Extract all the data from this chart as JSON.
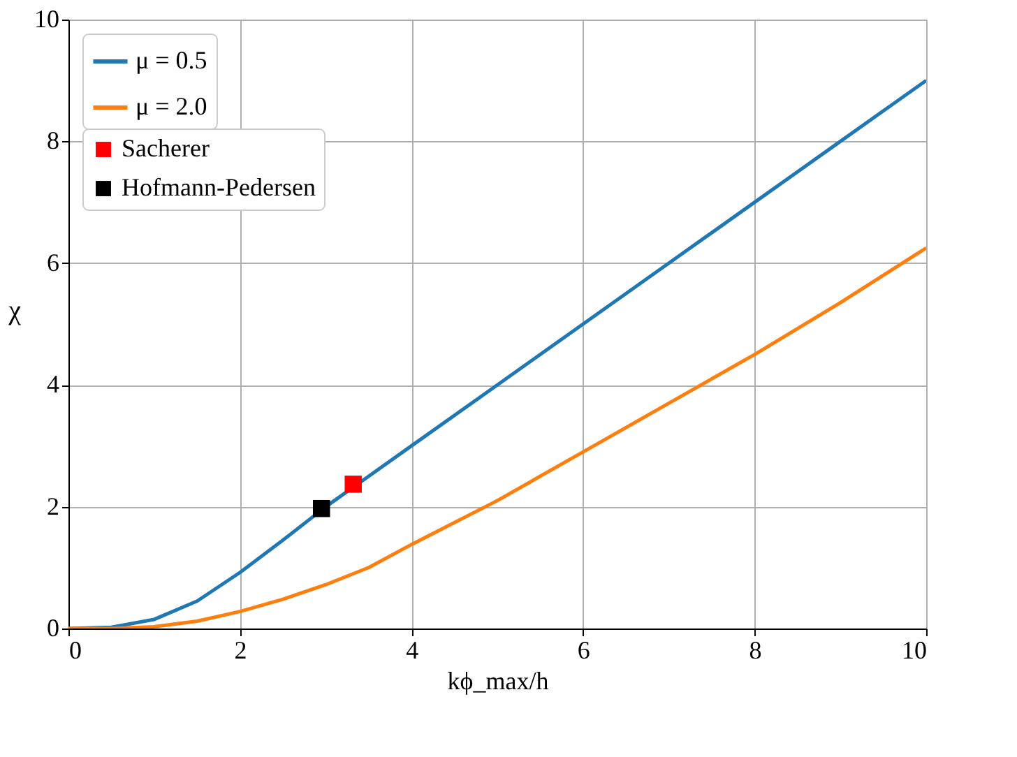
{
  "chart_data": {
    "type": "line",
    "xlabel": "kϕ_max/h",
    "ylabel": "χ",
    "xlim": [
      0,
      10
    ],
    "ylim": [
      0,
      10
    ],
    "xticks": [
      0,
      2,
      4,
      6,
      8,
      10
    ],
    "yticks": [
      0,
      2,
      4,
      6,
      8,
      10
    ],
    "grid": true,
    "legend": "top left",
    "series": [
      {
        "name": "μ = 0.5",
        "color": "#1f77b4",
        "x": [
          0,
          0.5,
          1,
          1.5,
          2,
          2.5,
          3,
          3.5,
          4,
          5,
          6,
          7,
          8,
          9,
          10
        ],
        "values": [
          0,
          0.02,
          0.15,
          0.45,
          0.92,
          1.45,
          2.0,
          2.5,
          3.0,
          4.0,
          5.0,
          6.0,
          7.0,
          8.0,
          9.0
        ]
      },
      {
        "name": "μ = 2.0",
        "color": "#ff7f0e",
        "x": [
          0,
          0.5,
          1,
          1.5,
          2,
          2.5,
          3,
          3.5,
          4,
          5,
          6,
          7,
          8,
          9,
          10
        ],
        "values": [
          0,
          0.0,
          0.03,
          0.12,
          0.28,
          0.48,
          0.72,
          1.0,
          1.38,
          2.1,
          2.9,
          3.7,
          4.5,
          5.35,
          6.25
        ]
      },
      {
        "name": "Sacherer",
        "type": "scatter",
        "marker": "square",
        "color": "#ff0000",
        "x": [
          3.32
        ],
        "values": [
          2.37
        ]
      },
      {
        "name": "Hofmann-Pedersen",
        "type": "scatter",
        "marker": "square",
        "color": "#000000",
        "x": [
          2.95
        ],
        "values": [
          1.97
        ]
      }
    ]
  }
}
